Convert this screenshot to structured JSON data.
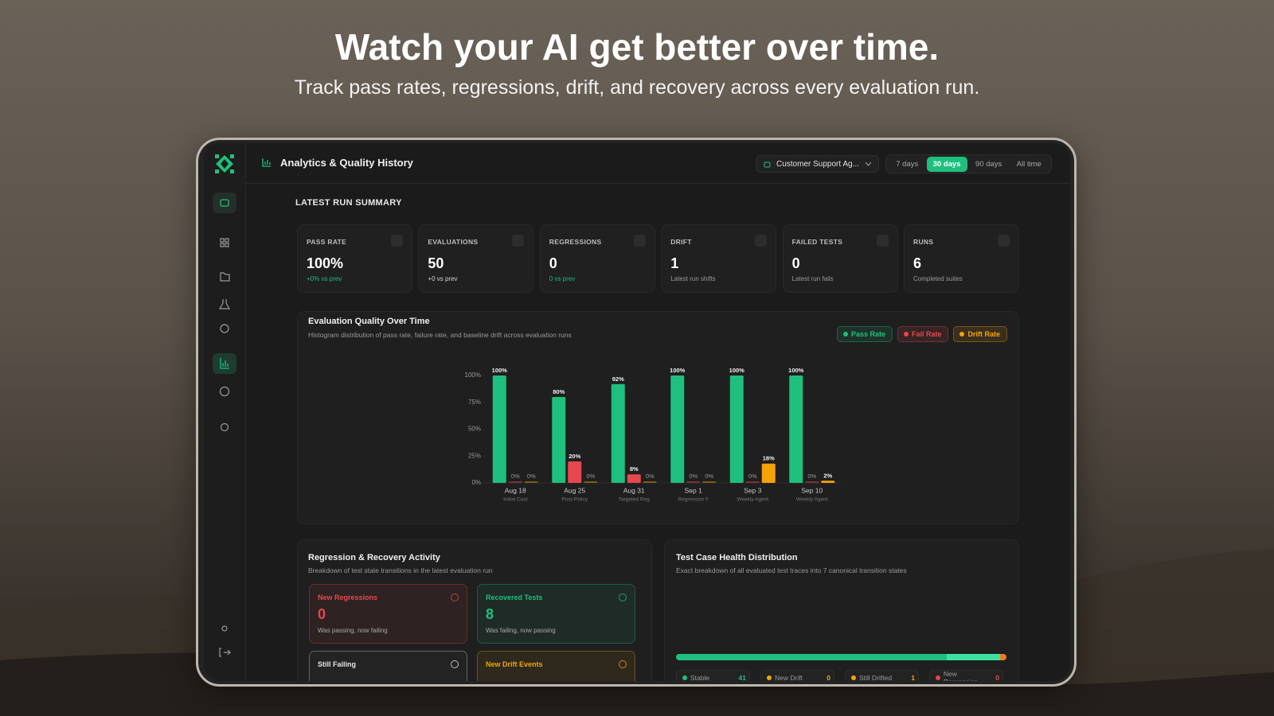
{
  "hero": {
    "title": "Watch your AI get better over time.",
    "subtitle": "Track pass rates, regressions, drift, and recovery across every evaluation run."
  },
  "header": {
    "title": "Analytics & Quality History",
    "agent": "Customer Support Ag...",
    "ranges": [
      "7 days",
      "30 days",
      "90 days",
      "All time"
    ],
    "active_range": 1
  },
  "summary": {
    "title": "LATEST RUN SUMMARY",
    "cards": [
      {
        "label": "PASS RATE",
        "value": "100%",
        "note": "+0% vs prev",
        "note_color": "#1fbf7f"
      },
      {
        "label": "EVALUATIONS",
        "value": "50",
        "note": "+0 vs prev",
        "note_color": "#d4d4d4"
      },
      {
        "label": "REGRESSIONS",
        "value": "0",
        "note": "0 vs prev",
        "note_color": "#1fbf7f"
      },
      {
        "label": "DRIFT",
        "value": "1",
        "note": "Latest run shifts",
        "note_color": "#9a9a9a"
      },
      {
        "label": "FAILED TESTS",
        "value": "0",
        "note": "Latest run fails",
        "note_color": "#9a9a9a"
      },
      {
        "label": "RUNS",
        "value": "6",
        "note": "Completed suites",
        "note_color": "#9a9a9a"
      }
    ]
  },
  "chart_data": {
    "type": "bar",
    "title": "Evaluation Quality Over Time",
    "subtitle": "Histogram distribution of pass rate, failure rate, and baseline drift across evaluation runs",
    "categories": [
      "Aug 18",
      "Aug 25",
      "Aug 31",
      "Sep 1",
      "Sep 3",
      "Sep 10"
    ],
    "sublabels": [
      "Initial Cust",
      "Post-Policy",
      "Targeted Reg",
      "Regression F",
      "Weekly Agent",
      "Weekly Agent"
    ],
    "series": [
      {
        "name": "Pass Rate",
        "color": "#1fbf7f",
        "values": [
          100,
          80,
          92,
          100,
          100,
          100
        ],
        "value_labels": [
          "100%",
          "80%",
          "92%",
          "100%",
          "100%",
          "100%"
        ]
      },
      {
        "name": "Fail Rate",
        "color": "#e5484d",
        "values": [
          0,
          20,
          8,
          0,
          0,
          0
        ],
        "value_labels": [
          "0%",
          "20%",
          "8%",
          "0%",
          "0%",
          "0%"
        ]
      },
      {
        "name": "Drift Rate",
        "color": "#f5a30b",
        "values": [
          0,
          0,
          0,
          0,
          18,
          2
        ],
        "value_labels": [
          "0%",
          "0%",
          "0%",
          "0%",
          "18%",
          "2%"
        ]
      }
    ],
    "ylim": [
      0,
      100
    ],
    "yticks": [
      {
        "value": 0,
        "label": "0%"
      },
      {
        "value": 25,
        "label": "25%"
      },
      {
        "value": 50,
        "label": "50%"
      },
      {
        "value": 75,
        "label": "75%"
      },
      {
        "value": 100,
        "label": "100%"
      }
    ]
  },
  "activity": {
    "title": "Regression & Recovery Activity",
    "subtitle": "Breakdown of test state transitions in the latest evaluation run",
    "cards": [
      {
        "label": "New Regressions",
        "value": 0,
        "note": "Was passing, now failing",
        "color": "#e5484d"
      },
      {
        "label": "Recovered Tests",
        "value": 8,
        "note": "Was failing, now passing",
        "color": "#1fbf7f"
      },
      {
        "label": "Still Failing",
        "color": "#e6e6e6"
      },
      {
        "label": "New Drift Events",
        "color": "#f5a30b"
      }
    ]
  },
  "health": {
    "title": "Test Case Health Distribution",
    "subtitle": "Exact breakdown of all evaluated test traces into 7 canonical transition states",
    "items": [
      {
        "label": "Stable",
        "value": 41,
        "color": "#1fbf7f"
      },
      {
        "label": "New Drift",
        "value": 0,
        "color": "#f5a30b"
      },
      {
        "label": "Still Drifted",
        "value": 1,
        "color": "#f5a30b"
      },
      {
        "label": "New Regression",
        "value": 0,
        "color": "#e5484d"
      }
    ]
  }
}
